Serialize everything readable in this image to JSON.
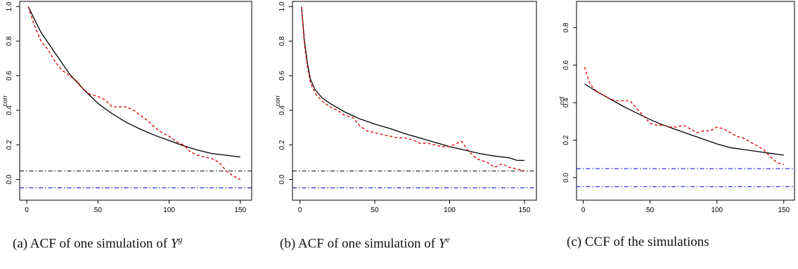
{
  "chart_data": [
    {
      "type": "line",
      "xlabel": "",
      "ylabel": "corr",
      "xlim": [
        -5,
        158
      ],
      "ylim": [
        -0.12,
        1.03
      ],
      "xticks": [
        0,
        50,
        100,
        150
      ],
      "yticks": [
        0.0,
        0.2,
        0.4,
        0.6,
        0.8,
        1.0
      ],
      "ytick_labels": [
        "0.0",
        "0.2",
        "0.4",
        "0.6",
        "0.8",
        "1.0"
      ],
      "series": [
        {
          "style": "solid",
          "color": "#000000",
          "x": [
            1,
            10,
            20,
            30,
            40,
            50,
            60,
            70,
            80,
            90,
            100,
            110,
            120,
            130,
            140,
            150
          ],
          "y": [
            1.0,
            0.85,
            0.73,
            0.61,
            0.52,
            0.44,
            0.38,
            0.33,
            0.29,
            0.255,
            0.225,
            0.195,
            0.17,
            0.15,
            0.14,
            0.13
          ]
        },
        {
          "style": "dashed",
          "color": "#dd0000",
          "x": [
            1,
            5,
            10,
            15,
            20,
            25,
            30,
            35,
            40,
            45,
            50,
            55,
            60,
            65,
            70,
            75,
            80,
            85,
            90,
            95,
            100,
            105,
            110,
            115,
            120,
            125,
            130,
            135,
            140,
            145,
            150
          ],
          "y": [
            1.0,
            0.9,
            0.8,
            0.75,
            0.68,
            0.63,
            0.6,
            0.57,
            0.52,
            0.49,
            0.48,
            0.46,
            0.42,
            0.42,
            0.42,
            0.4,
            0.37,
            0.34,
            0.3,
            0.27,
            0.25,
            0.22,
            0.2,
            0.16,
            0.14,
            0.13,
            0.12,
            0.1,
            0.05,
            0.02,
            0.0
          ]
        }
      ],
      "hlines": [
        {
          "y": 0.049,
          "color": "#000000",
          "style": "dashdot"
        },
        {
          "y": -0.049,
          "color": "#0000dd",
          "style": "dashdot"
        }
      ]
    },
    {
      "type": "line",
      "xlabel": "",
      "ylabel": "corr",
      "xlim": [
        -5,
        158
      ],
      "ylim": [
        -0.12,
        1.03
      ],
      "xticks": [
        0,
        50,
        100,
        150
      ],
      "yticks": [
        0.0,
        0.2,
        0.4,
        0.6,
        0.8,
        1.0
      ],
      "ytick_labels": [
        "0.0",
        "0.2",
        "0.4",
        "0.6",
        "0.8",
        "1.0"
      ],
      "series": [
        {
          "style": "solid",
          "color": "#000000",
          "x": [
            1,
            3,
            5,
            7,
            10,
            15,
            20,
            30,
            40,
            50,
            60,
            70,
            80,
            90,
            100,
            110,
            120,
            130,
            140,
            145,
            150
          ],
          "y": [
            1.0,
            0.8,
            0.67,
            0.58,
            0.52,
            0.47,
            0.44,
            0.39,
            0.35,
            0.32,
            0.295,
            0.265,
            0.24,
            0.215,
            0.19,
            0.17,
            0.15,
            0.135,
            0.125,
            0.11,
            0.11
          ]
        },
        {
          "style": "dashed",
          "color": "#dd0000",
          "x": [
            1,
            3,
            5,
            7,
            10,
            15,
            20,
            25,
            30,
            35,
            40,
            45,
            50,
            55,
            60,
            65,
            70,
            75,
            80,
            85,
            90,
            95,
            100,
            105,
            108,
            112,
            118,
            125,
            130,
            135,
            140,
            145,
            150
          ],
          "y": [
            1.0,
            0.78,
            0.65,
            0.56,
            0.5,
            0.45,
            0.42,
            0.4,
            0.37,
            0.36,
            0.31,
            0.28,
            0.27,
            0.26,
            0.25,
            0.24,
            0.24,
            0.23,
            0.21,
            0.21,
            0.2,
            0.19,
            0.19,
            0.21,
            0.22,
            0.17,
            0.12,
            0.1,
            0.07,
            0.09,
            0.07,
            0.06,
            0.05
          ]
        }
      ],
      "hlines": [
        {
          "y": 0.049,
          "color": "#000000",
          "style": "dashdot"
        },
        {
          "y": -0.049,
          "color": "#0000dd",
          "style": "dashdot"
        }
      ]
    },
    {
      "type": "line",
      "xlabel": "",
      "ylabel": "ccf",
      "xlim": [
        -5,
        158
      ],
      "ylim": [
        -0.12,
        0.94
      ],
      "xticks": [
        0,
        50,
        100,
        150
      ],
      "yticks": [
        0.0,
        0.2,
        0.4,
        0.6,
        0.8
      ],
      "ytick_labels": [
        "0.0",
        "0.2",
        "0.4",
        "0.6",
        "0.8"
      ],
      "series": [
        {
          "style": "solid",
          "color": "#000000",
          "x": [
            1,
            10,
            20,
            30,
            40,
            50,
            60,
            70,
            80,
            90,
            100,
            110,
            120,
            130,
            140,
            150
          ],
          "y": [
            0.5,
            0.46,
            0.42,
            0.38,
            0.345,
            0.31,
            0.28,
            0.255,
            0.23,
            0.205,
            0.18,
            0.16,
            0.15,
            0.14,
            0.13,
            0.12
          ]
        },
        {
          "style": "dashed",
          "color": "#dd0000",
          "x": [
            1,
            5,
            10,
            15,
            20,
            25,
            30,
            35,
            40,
            45,
            50,
            55,
            60,
            65,
            70,
            75,
            80,
            85,
            90,
            95,
            100,
            105,
            110,
            115,
            120,
            125,
            130,
            135,
            140,
            145,
            150
          ],
          "y": [
            0.59,
            0.5,
            0.46,
            0.44,
            0.42,
            0.41,
            0.41,
            0.41,
            0.37,
            0.33,
            0.29,
            0.28,
            0.28,
            0.27,
            0.27,
            0.28,
            0.26,
            0.24,
            0.25,
            0.25,
            0.27,
            0.26,
            0.24,
            0.22,
            0.21,
            0.19,
            0.17,
            0.15,
            0.11,
            0.08,
            0.07
          ]
        }
      ],
      "hlines": [
        {
          "y": 0.048,
          "color": "#0000dd",
          "style": "dashdot"
        },
        {
          "y": -0.048,
          "color": "#0000dd",
          "style": "dashdot"
        }
      ]
    }
  ],
  "captions": [
    {
      "prefix": "(a)",
      "text": "ACF of one simulation of",
      "var": "Y",
      "sup": "g"
    },
    {
      "prefix": "(b)",
      "text": "ACF of one simulation of",
      "var": "Y",
      "sup": "e"
    },
    {
      "prefix": "(c)",
      "text": "CCF of the simulations",
      "var": "",
      "sup": ""
    }
  ]
}
